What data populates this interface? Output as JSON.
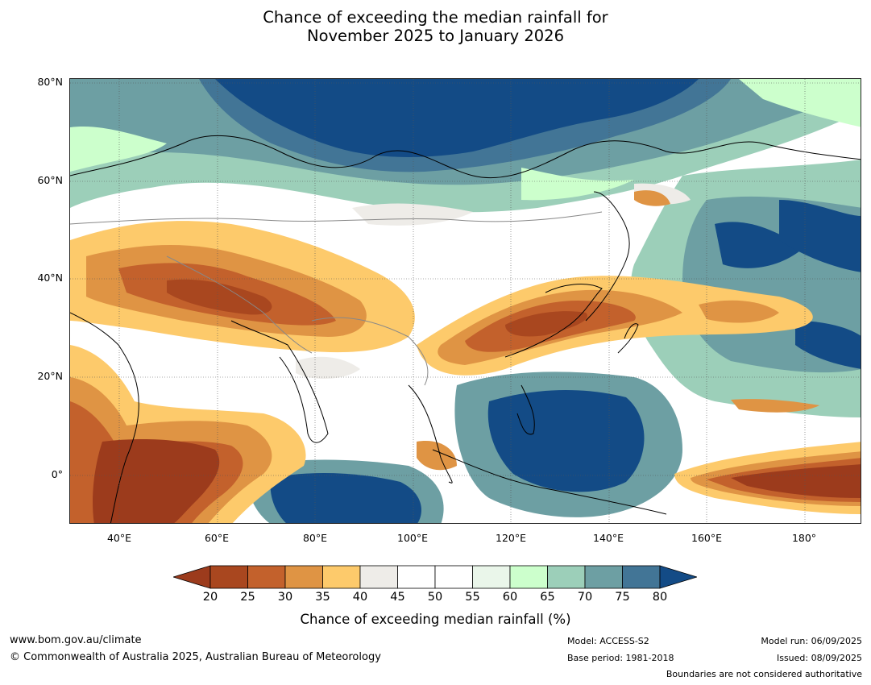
{
  "title_line1": "Chance of exceeding the median rainfall for",
  "title_line2": "November 2025 to January 2026",
  "map": {
    "lat_labels": [
      "80°N",
      "60°N",
      "40°N",
      "20°N",
      "0°"
    ],
    "lon_labels": [
      "40°E",
      "60°E",
      "80°E",
      "100°E",
      "120°E",
      "140°E",
      "160°E",
      "180°"
    ],
    "extent": {
      "lon_min": 30,
      "lon_max": 192,
      "lat_min": -10,
      "lat_max": 81
    }
  },
  "colorbar": {
    "ticks": [
      "20",
      "25",
      "30",
      "35",
      "40",
      "45",
      "50",
      "55",
      "60",
      "65",
      "70",
      "75",
      "80"
    ],
    "colors": [
      "#9c3b1c",
      "#a9471f",
      "#c3612c",
      "#df9444",
      "#fdca6b",
      "#eeece8",
      "#ffffff",
      "#ffffff",
      "#eaf6ea",
      "#ccffcc",
      "#9ccfb9",
      "#6d9fa3",
      "#427596",
      "#134b86"
    ],
    "label": "Chance of exceeding median rainfall (%)"
  },
  "footer": {
    "website": "www.bom.gov.au/climate",
    "copyright": "© Commonwealth of Australia 2025, Australian Bureau of Meteorology",
    "model": "Model: ACCESS-S2",
    "base_period": "Base period: 1981-2018",
    "model_run": "Model run: 06/09/2025",
    "issued": "Issued: 08/09/2025",
    "disclaimer": "Boundaries are not considered authoritative"
  }
}
